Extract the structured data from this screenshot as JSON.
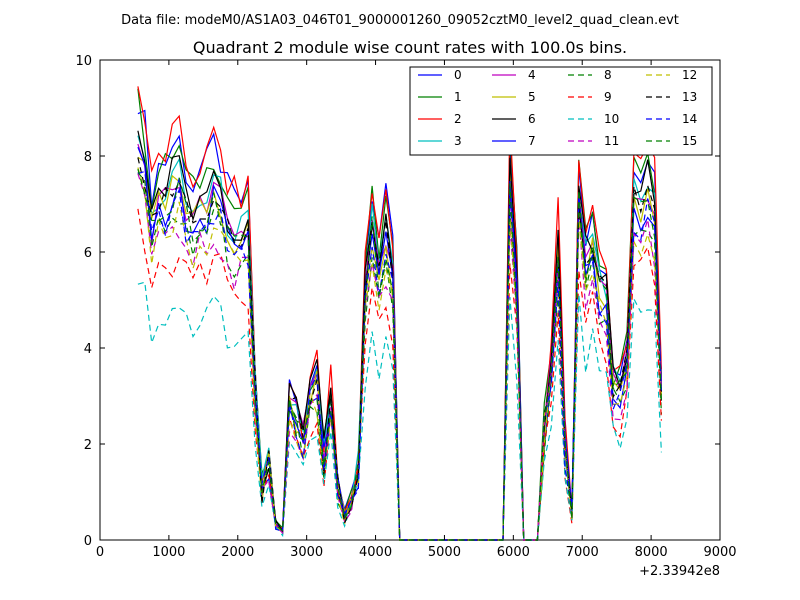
{
  "chart_data": {
    "type": "line",
    "suptitle": "Data file: modeM0/AS1A03_046T01_9000001260_09052cztM0_level2_quad_clean.evt",
    "title": "Quadrant 2 module wise count rates with 100.0s bins.",
    "xlabel": "",
    "ylabel": "",
    "x_offset_label": "+2.33942e8",
    "xlim": [
      0,
      9000
    ],
    "ylim": [
      0,
      10
    ],
    "x_ticks": [
      0,
      1000,
      2000,
      3000,
      4000,
      5000,
      6000,
      7000,
      8000,
      9000
    ],
    "y_ticks": [
      0,
      2,
      4,
      6,
      8,
      10
    ],
    "x_tick_labels": [
      "0",
      "1000",
      "2000",
      "3000",
      "4000",
      "5000",
      "6000",
      "7000",
      "8000",
      "9000"
    ],
    "y_tick_labels": [
      "0",
      "2",
      "4",
      "6",
      "8",
      "10"
    ],
    "grid": false,
    "legend_placement": "upper-right, 4 columns",
    "x": [
      550,
      650,
      750,
      850,
      950,
      1050,
      1150,
      1250,
      1350,
      1450,
      1550,
      1650,
      1750,
      1850,
      1950,
      2050,
      2150,
      2250,
      2350,
      2450,
      2550,
      2650,
      2750,
      2850,
      2950,
      3050,
      3150,
      3250,
      3350,
      3450,
      3550,
      3650,
      3750,
      3850,
      3950,
      4050,
      4150,
      4250,
      4350,
      4450,
      4550,
      4650,
      4750,
      4850,
      4950,
      5050,
      5150,
      5250,
      5350,
      5450,
      5550,
      5650,
      5750,
      5850,
      5950,
      6050,
      6150,
      6250,
      6350,
      6450,
      6550,
      6650,
      6750,
      6850,
      6950,
      7050,
      7150,
      7250,
      7350,
      7450,
      7550,
      7650,
      7750,
      7850,
      7950,
      8050,
      8150
    ],
    "base_profile": [
      8.9,
      8.3,
      7.0,
      7.5,
      7.6,
      7.9,
      8.0,
      7.4,
      7.1,
      7.4,
      7.5,
      7.9,
      7.6,
      7.0,
      6.8,
      6.8,
      6.9,
      3.5,
      1.1,
      1.8,
      0.35,
      0.2,
      3.1,
      2.8,
      2.2,
      3.2,
      3.5,
      1.8,
      3.2,
      1.2,
      0.5,
      0.9,
      1.6,
      5.6,
      7.0,
      6.0,
      6.8,
      5.8,
      0.0,
      0.0,
      0.0,
      0.0,
      0.0,
      0.0,
      0.0,
      0.0,
      0.0,
      0.0,
      0.0,
      0.0,
      0.0,
      0.0,
      0.0,
      0.0,
      8.0,
      5.6,
      0.0,
      0.0,
      0.0,
      2.5,
      3.8,
      6.4,
      2.1,
      0.6,
      7.8,
      6.2,
      6.5,
      5.6,
      5.4,
      3.5,
      3.4,
      4.0,
      7.6,
      7.5,
      7.8,
      7.3,
      3.4
    ],
    "series": [
      {
        "name": "0",
        "color": "#0000ff",
        "dash": "solid",
        "scale": 1.04
      },
      {
        "name": "1",
        "color": "#008000",
        "dash": "solid",
        "scale": 1.02
      },
      {
        "name": "2",
        "color": "#ff0000",
        "dash": "solid",
        "scale": 1.06
      },
      {
        "name": "3",
        "color": "#00bfbf",
        "dash": "solid",
        "scale": 0.95
      },
      {
        "name": "4",
        "color": "#bf00bf",
        "dash": "solid",
        "scale": 0.93
      },
      {
        "name": "5",
        "color": "#bfbf00",
        "dash": "solid",
        "scale": 0.92
      },
      {
        "name": "6",
        "color": "#000000",
        "dash": "solid",
        "scale": 0.97
      },
      {
        "name": "7",
        "color": "#0000ff",
        "dash": "solid",
        "scale": 0.9
      },
      {
        "name": "8",
        "color": "#008000",
        "dash": "dashed",
        "scale": 0.86
      },
      {
        "name": "9",
        "color": "#ff0000",
        "dash": "dashed",
        "scale": 0.74
      },
      {
        "name": "10",
        "color": "#00bfbf",
        "dash": "dashed",
        "scale": 0.62
      },
      {
        "name": "11",
        "color": "#bf00bf",
        "dash": "dashed",
        "scale": 0.82
      },
      {
        "name": "12",
        "color": "#bfbf00",
        "dash": "dashed",
        "scale": 0.84
      },
      {
        "name": "13",
        "color": "#000000",
        "dash": "dashed",
        "scale": 0.93
      },
      {
        "name": "14",
        "color": "#0000ff",
        "dash": "dashed",
        "scale": 0.88
      },
      {
        "name": "15",
        "color": "#008000",
        "dash": "dashed",
        "scale": 0.91
      }
    ]
  }
}
